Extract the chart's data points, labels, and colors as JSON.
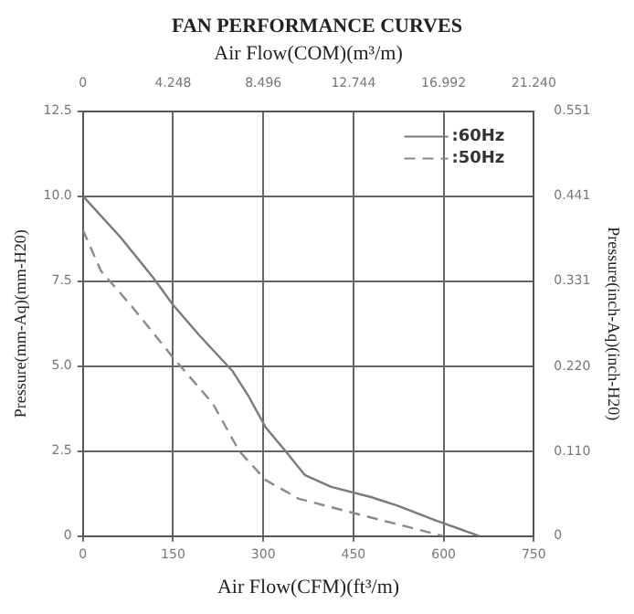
{
  "chart_data": {
    "type": "line",
    "title": "FAN PERFORMANCE CURVES",
    "x2label": "Air Flow(COM)(m³/m)",
    "xlabel": "Air Flow(CFM)(ft³/m)",
    "ylabel": "Pressure(mm-Aq)(mm-H20)",
    "y2label": "Pressure(inch-Aq)(inch-H20)",
    "xlim": [
      0,
      750
    ],
    "xticks": [
      0,
      150,
      300,
      450,
      600,
      750
    ],
    "x2lim": [
      0,
      21.24
    ],
    "x2ticks": [
      0,
      {
        "value": 4.248,
        "label": "4.248"
      },
      {
        "value": 8.496,
        "label": "8.496"
      },
      {
        "value": 12.744,
        "label": "12.744"
      },
      {
        "value": 16.992,
        "label": "16.992"
      },
      {
        "value": 21.24,
        "label": "21.240"
      }
    ],
    "ylim": [
      0,
      12.5
    ],
    "yticks": [
      0,
      2.5,
      {
        "value": 5,
        "label": "5.0"
      },
      7.5,
      {
        "value": 10,
        "label": "10.0"
      },
      12.5
    ],
    "y2lim": [
      0,
      0.551
    ],
    "y2ticks": [
      0,
      {
        "value": 0.11,
        "label": "0.110"
      },
      {
        "value": 0.22,
        "label": "0.220"
      },
      0.331,
      0.441,
      0.551
    ],
    "grid": true,
    "legend": "top right",
    "marker": "none",
    "series": [
      {
        "name": ":60Hz",
        "color": "#7a7a7a",
        "line_style": "solid",
        "x": [
          0,
          62,
          117,
          150,
          194,
          249,
          276,
          304,
          337,
          369,
          413,
          479,
          523,
          589,
          660
        ],
        "values": [
          10,
          8.8,
          7.6,
          6.8,
          5.9,
          4.85,
          4.1,
          3.2,
          2.5,
          1.8,
          1.45,
          1.15,
          0.9,
          0.45,
          0
        ]
      },
      {
        "name": ":50Hz",
        "color": "#8a8a8a",
        "line_style": "dashed",
        "x": [
          0,
          30,
          84,
          150,
          216,
          260,
          304,
          359,
          435,
          523,
          600
        ],
        "values": [
          9,
          7.8,
          6.7,
          5.25,
          3.9,
          2.5,
          1.65,
          1.1,
          0.75,
          0.35,
          0
        ]
      }
    ]
  }
}
